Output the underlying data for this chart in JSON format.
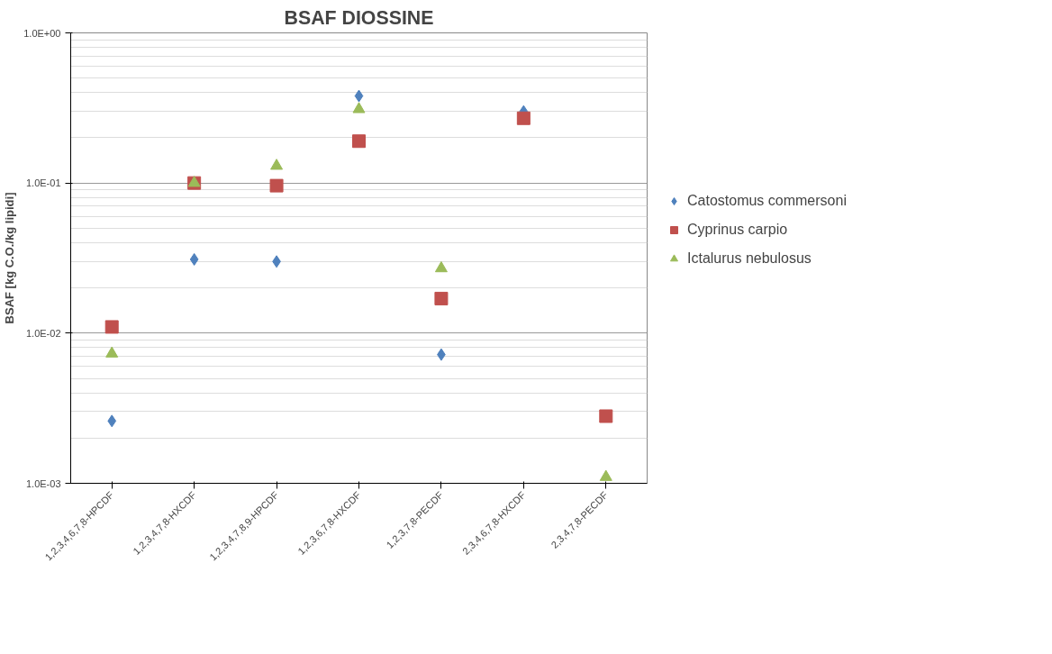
{
  "chart_data": {
    "type": "scatter",
    "title": "BSAF DIOSSINE",
    "ylabel": "BSAF [kg C.O./kg lipidi]",
    "categories": [
      "1,2,3,4,6,7,8-HPCDF",
      "1,2,3,4,7,8-HXCDF",
      "1,2,3,4,7,8,9-HPCDF",
      "1,2,3,6,7,8-HXCDF",
      "1,2,3,7,8-PECDF",
      "2,3,4,6,7,8-HXCDF",
      "2,3,4,7,8-PECDF"
    ],
    "series": [
      {
        "name": "Catostomus commersoni",
        "color": "#4f81bd",
        "marker": "diamond",
        "values": [
          0.0026,
          0.031,
          0.03,
          0.38,
          0.0072,
          0.3,
          null
        ]
      },
      {
        "name": "Cyprinus carpio",
        "color": "#c0504d",
        "marker": "square",
        "values": [
          0.011,
          0.1,
          0.096,
          0.19,
          0.017,
          0.27,
          0.0028
        ]
      },
      {
        "name": "Ictalurus nebulosus",
        "color": "#9bbb59",
        "marker": "triangle",
        "values": [
          0.0073,
          0.1,
          0.13,
          0.31,
          0.027,
          null,
          0.0011
        ]
      }
    ],
    "log": "y",
    "ylim": [
      0.001,
      1
    ],
    "yticks": [
      {
        "value": 0.001,
        "label": "1.0E-03"
      },
      {
        "value": 0.01,
        "label": "1.0E-02"
      },
      {
        "value": 0.1,
        "label": "1.0E-01"
      },
      {
        "value": 1,
        "label": "1.0E+00"
      }
    ],
    "grid": "y",
    "legend": "right"
  }
}
